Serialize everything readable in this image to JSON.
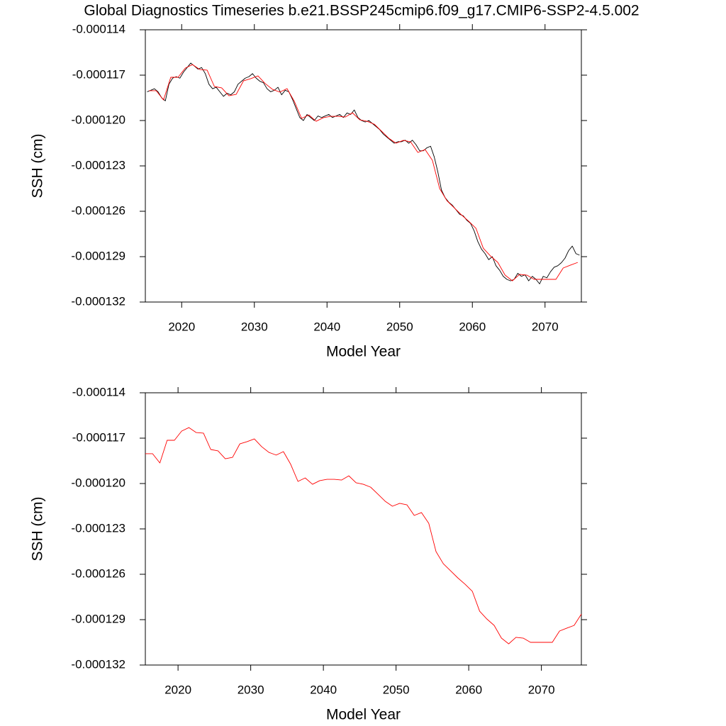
{
  "chart_data": [
    {
      "type": "line",
      "title": "Global Diagnostics Timeseries b.e21.BSSP245cmip6.f09_g17.CMIP6-SSP2-4.5.002",
      "xlabel": "Model Year",
      "ylabel": "SSH (cm)",
      "xlim": [
        2015,
        2075
      ],
      "xticks": [
        2020,
        2030,
        2040,
        2050,
        2060,
        2070
      ],
      "ylim": [
        -0.000132,
        -0.000114
      ],
      "yticks": [
        -0.000114,
        -0.000117,
        {
          "value": -0.00012,
          "label": "-0.000120"
        },
        -0.000123,
        -0.000126,
        -0.000129,
        -0.000132
      ],
      "series": [
        {
          "color": "#000000",
          "x": [
            2015.25,
            2015.75,
            2016.25,
            2016.75,
            2017.25,
            2017.75,
            2018.25,
            2018.75,
            2019.25,
            2019.75,
            2020.25,
            2020.75,
            2021.25,
            2021.75,
            2022.25,
            2022.75,
            2023.25,
            2023.75,
            2024.25,
            2024.75,
            2025.25,
            2025.75,
            2026.25,
            2026.75,
            2027.25,
            2027.75,
            2028.25,
            2028.75,
            2029.25,
            2029.75,
            2030.25,
            2030.75,
            2031.25,
            2031.75,
            2032.25,
            2032.75,
            2033.25,
            2033.75,
            2034.25,
            2034.75,
            2035.25,
            2035.75,
            2036.25,
            2036.75,
            2037.25,
            2037.75,
            2038.25,
            2038.75,
            2039.25,
            2039.75,
            2040.25,
            2040.75,
            2041.25,
            2041.75,
            2042.25,
            2042.75,
            2043.25,
            2043.75,
            2044.25,
            2044.75,
            2045.25,
            2045.75,
            2046.25,
            2046.75,
            2047.25,
            2047.75,
            2048.25,
            2048.75,
            2049.25,
            2049.75,
            2050.25,
            2050.75,
            2051.25,
            2051.75,
            2052.25,
            2052.75,
            2053.25,
            2053.75,
            2054.25,
            2054.75,
            2055.25,
            2055.75,
            2056.25,
            2056.75,
            2057.25,
            2057.75,
            2058.25,
            2058.75,
            2059.25,
            2059.75,
            2060.25,
            2060.75,
            2061.25,
            2061.75,
            2062.25,
            2062.75,
            2063.25,
            2063.75,
            2064.25,
            2064.75,
            2065.25,
            2065.75,
            2066.25,
            2066.75,
            2067.25,
            2067.75,
            2068.25,
            2068.75,
            2069.25,
            2069.75,
            2070.25,
            2070.75,
            2071.25,
            2071.75,
            2072.25,
            2072.75,
            2073.25,
            2073.75,
            2074.25,
            2074.75
          ],
          "values": [
            -0.0001181,
            -0.000118,
            -0.0001179,
            -0.0001181,
            -0.0001185,
            -0.0001187,
            -0.0001176,
            -0.0001172,
            -0.0001171,
            -0.0001172,
            -0.0001168,
            -0.0001165,
            -0.0001162,
            -0.0001164,
            -0.0001166,
            -0.0001165,
            -0.0001169,
            -0.0001176,
            -0.0001179,
            -0.0001178,
            -0.0001181,
            -0.0001184,
            -0.0001182,
            -0.0001183,
            -0.0001181,
            -0.0001176,
            -0.0001174,
            -0.0001172,
            -0.0001171,
            -0.0001169,
            -0.0001172,
            -0.0001174,
            -0.0001175,
            -0.0001179,
            -0.0001181,
            -0.000118,
            -0.0001178,
            -0.0001183,
            -0.000118,
            -0.0001181,
            -0.0001186,
            -0.0001192,
            -0.0001198,
            -0.00012,
            -0.0001196,
            -0.0001198,
            -0.00012,
            -0.0001197,
            -0.0001198,
            -0.0001197,
            -0.0001196,
            -0.0001198,
            -0.0001197,
            -0.0001196,
            -0.0001198,
            -0.0001195,
            -0.0001196,
            -0.0001193,
            -0.0001198,
            -0.00012,
            -0.0001201,
            -0.00012,
            -0.0001202,
            -0.0001204,
            -0.0001206,
            -0.0001209,
            -0.0001211,
            -0.0001213,
            -0.0001215,
            -0.0001214,
            -0.0001214,
            -0.0001213,
            -0.0001215,
            -0.0001213,
            -0.0001216,
            -0.000122,
            -0.000122,
            -0.0001218,
            -0.0001217,
            -0.0001224,
            -0.0001234,
            -0.0001246,
            -0.0001251,
            -0.0001254,
            -0.0001256,
            -0.0001259,
            -0.0001262,
            -0.0001263,
            -0.0001266,
            -0.0001268,
            -0.0001273,
            -0.000128,
            -0.0001285,
            -0.0001288,
            -0.0001292,
            -0.000129,
            -0.0001296,
            -0.0001299,
            -0.0001303,
            -0.0001305,
            -0.0001306,
            -0.0001305,
            -0.0001301,
            -0.0001303,
            -0.0001302,
            -0.0001306,
            -0.0001303,
            -0.0001305,
            -0.0001308,
            -0.0001303,
            -0.0001304,
            -0.00013,
            -0.0001297,
            -0.0001296,
            -0.0001294,
            -0.0001291,
            -0.0001286,
            -0.0001283,
            -0.0001288,
            -0.0001289
          ]
        },
        {
          "color": "#ff0000",
          "x": [
            2015.5,
            2016.5,
            2017.5,
            2018.5,
            2019.5,
            2020.5,
            2021.5,
            2022.5,
            2023.5,
            2024.5,
            2025.5,
            2026.5,
            2027.5,
            2028.5,
            2029.5,
            2030.5,
            2031.5,
            2032.5,
            2033.5,
            2034.5,
            2035.5,
            2036.5,
            2037.5,
            2038.5,
            2039.5,
            2040.5,
            2041.5,
            2042.5,
            2043.5,
            2044.5,
            2045.5,
            2046.5,
            2047.5,
            2048.5,
            2049.5,
            2050.5,
            2051.5,
            2052.5,
            2053.5,
            2054.5,
            2055.5,
            2056.5,
            2057.5,
            2058.5,
            2059.5,
            2060.5,
            2061.5,
            2062.5,
            2063.5,
            2064.5,
            2065.5,
            2066.5,
            2067.5,
            2068.5,
            2069.5,
            2070.5,
            2071.5,
            2072.5,
            2073.5,
            2074.5
          ],
          "values": [
            -0.00011803,
            -0.00011803,
            -0.00011864,
            -0.00011714,
            -0.00011714,
            -0.00011653,
            -0.0001163,
            -0.00011663,
            -0.00011667,
            -0.00011775,
            -0.00011784,
            -0.00011836,
            -0.00011827,
            -0.00011738,
            -0.00011723,
            -0.00011705,
            -0.00011756,
            -0.00011794,
            -0.00011812,
            -0.00011789,
            -0.00011873,
            -0.00011986,
            -0.00011963,
            -0.00012005,
            -0.00011981,
            -0.00011972,
            -0.00011972,
            -0.00011977,
            -0.00011949,
            -0.00011995,
            -0.00012005,
            -0.00012024,
            -0.0001207,
            -0.00012117,
            -0.0001215,
            -0.00012131,
            -0.00012141,
            -0.00012211,
            -0.00012192,
            -0.00012263,
            -0.0001245,
            -0.0001253,
            -0.00012577,
            -0.00012624,
            -0.00012666,
            -0.00012713,
            -0.00012844,
            -0.00012896,
            -0.00012938,
            -0.00013022,
            -0.0001306,
            -0.00013017,
            -0.00013022,
            -0.0001305,
            -0.0001305,
            -0.0001305,
            -0.0001305,
            -0.00012975,
            -0.00012956,
            -0.00012938
          ]
        }
      ]
    },
    {
      "type": "line",
      "xlabel": "Model Year",
      "ylabel": "SSH (cm)",
      "xlim": [
        2015.5,
        2075.5
      ],
      "xticks": [
        2020,
        2030,
        2040,
        2050,
        2060,
        2070
      ],
      "ylim": [
        -0.000132,
        -0.000114
      ],
      "yticks": [
        -0.000114,
        -0.000117,
        {
          "value": -0.00012,
          "label": "-0.000120"
        },
        -0.000123,
        -0.000126,
        -0.000129,
        -0.000132
      ],
      "series": [
        {
          "color": "#ff0000",
          "x": [
            2015.5,
            2016.5,
            2017.5,
            2018.5,
            2019.5,
            2020.5,
            2021.5,
            2022.5,
            2023.5,
            2024.5,
            2025.5,
            2026.5,
            2027.5,
            2028.5,
            2029.5,
            2030.5,
            2031.5,
            2032.5,
            2033.5,
            2034.5,
            2035.5,
            2036.5,
            2037.5,
            2038.5,
            2039.5,
            2040.5,
            2041.5,
            2042.5,
            2043.5,
            2044.5,
            2045.5,
            2046.5,
            2047.5,
            2048.5,
            2049.5,
            2050.5,
            2051.5,
            2052.5,
            2053.5,
            2054.5,
            2055.5,
            2056.5,
            2057.5,
            2058.5,
            2059.5,
            2060.5,
            2061.5,
            2062.5,
            2063.5,
            2064.5,
            2065.5,
            2066.5,
            2067.5,
            2068.5,
            2069.5,
            2070.5,
            2071.5,
            2072.5,
            2073.5,
            2074.5,
            2075.5
          ],
          "values": [
            -0.00011803,
            -0.00011803,
            -0.00011864,
            -0.00011714,
            -0.00011714,
            -0.00011653,
            -0.0001163,
            -0.00011663,
            -0.00011667,
            -0.00011775,
            -0.00011784,
            -0.00011836,
            -0.00011827,
            -0.00011738,
            -0.00011723,
            -0.00011705,
            -0.00011756,
            -0.00011794,
            -0.00011812,
            -0.00011789,
            -0.00011873,
            -0.00011986,
            -0.00011963,
            -0.00012005,
            -0.00011981,
            -0.00011972,
            -0.00011972,
            -0.00011977,
            -0.00011949,
            -0.00011995,
            -0.00012005,
            -0.00012024,
            -0.0001207,
            -0.00012117,
            -0.0001215,
            -0.00012131,
            -0.00012141,
            -0.00012211,
            -0.00012192,
            -0.00012263,
            -0.0001245,
            -0.0001253,
            -0.00012577,
            -0.00012624,
            -0.00012666,
            -0.00012713,
            -0.00012844,
            -0.00012896,
            -0.00012938,
            -0.00013022,
            -0.0001306,
            -0.00013017,
            -0.00013022,
            -0.0001305,
            -0.0001305,
            -0.0001305,
            -0.0001305,
            -0.00012975,
            -0.00012956,
            -0.00012938,
            -0.00012863
          ]
        }
      ]
    }
  ]
}
